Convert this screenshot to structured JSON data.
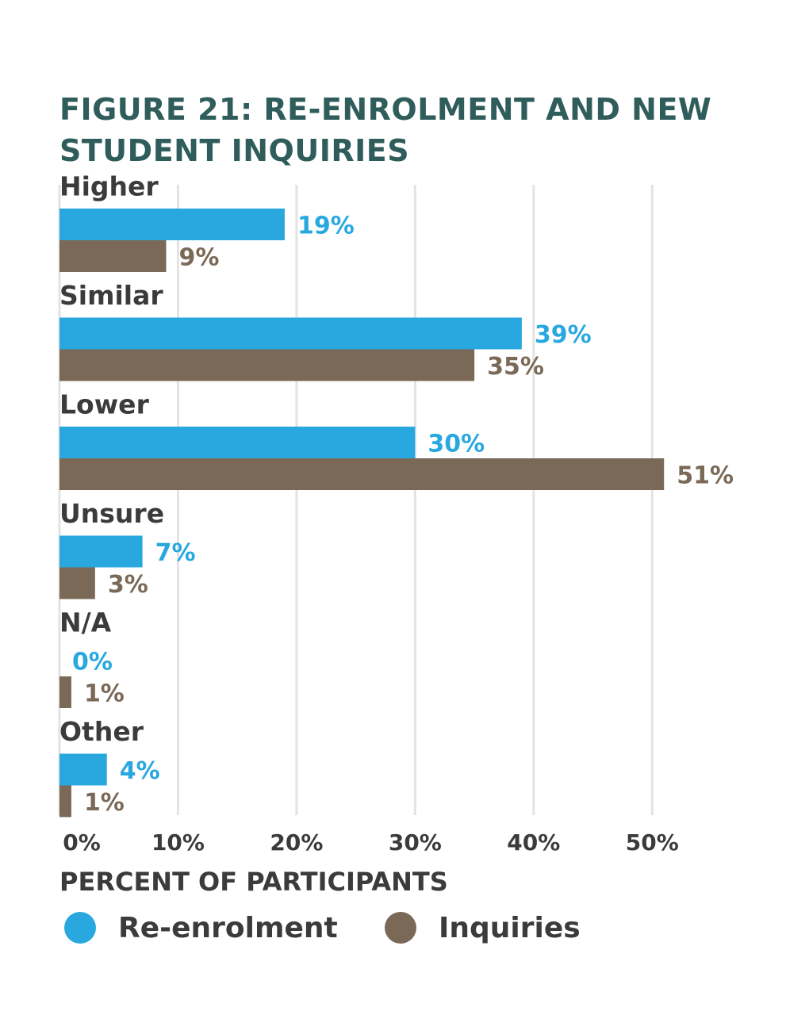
{
  "chart_data": {
    "type": "bar",
    "orientation": "horizontal",
    "title": "FIGURE 21: RE-ENROLMENT AND NEW STUDENT INQUIRIES",
    "x_label": "PERCENT OF PARTICIPANTS",
    "categories": [
      "Higher",
      "Similar",
      "Lower",
      "Unsure",
      "N/A",
      "Other"
    ],
    "series": [
      {
        "name": "Re-enrolment",
        "color": "#29a8e0",
        "values": [
          19,
          39,
          30,
          7,
          0,
          4
        ],
        "value_labels": [
          "19%",
          "39%",
          "30%",
          "7%",
          "0%",
          "4%"
        ]
      },
      {
        "name": "Inquiries",
        "color": "#7a6957",
        "values": [
          9,
          35,
          51,
          3,
          1,
          1
        ],
        "value_labels": [
          "9%",
          "35%",
          "51%",
          "3%",
          "1%",
          "1%"
        ]
      }
    ],
    "xlim": [
      0,
      55
    ],
    "xticks": [
      {
        "value": 0,
        "label": "0%"
      },
      {
        "value": 10,
        "label": "10%"
      },
      {
        "value": 20,
        "label": "20%"
      },
      {
        "value": 30,
        "label": "30%"
      },
      {
        "value": 40,
        "label": "40%"
      },
      {
        "value": 50,
        "label": "50%"
      }
    ],
    "grid": true
  }
}
